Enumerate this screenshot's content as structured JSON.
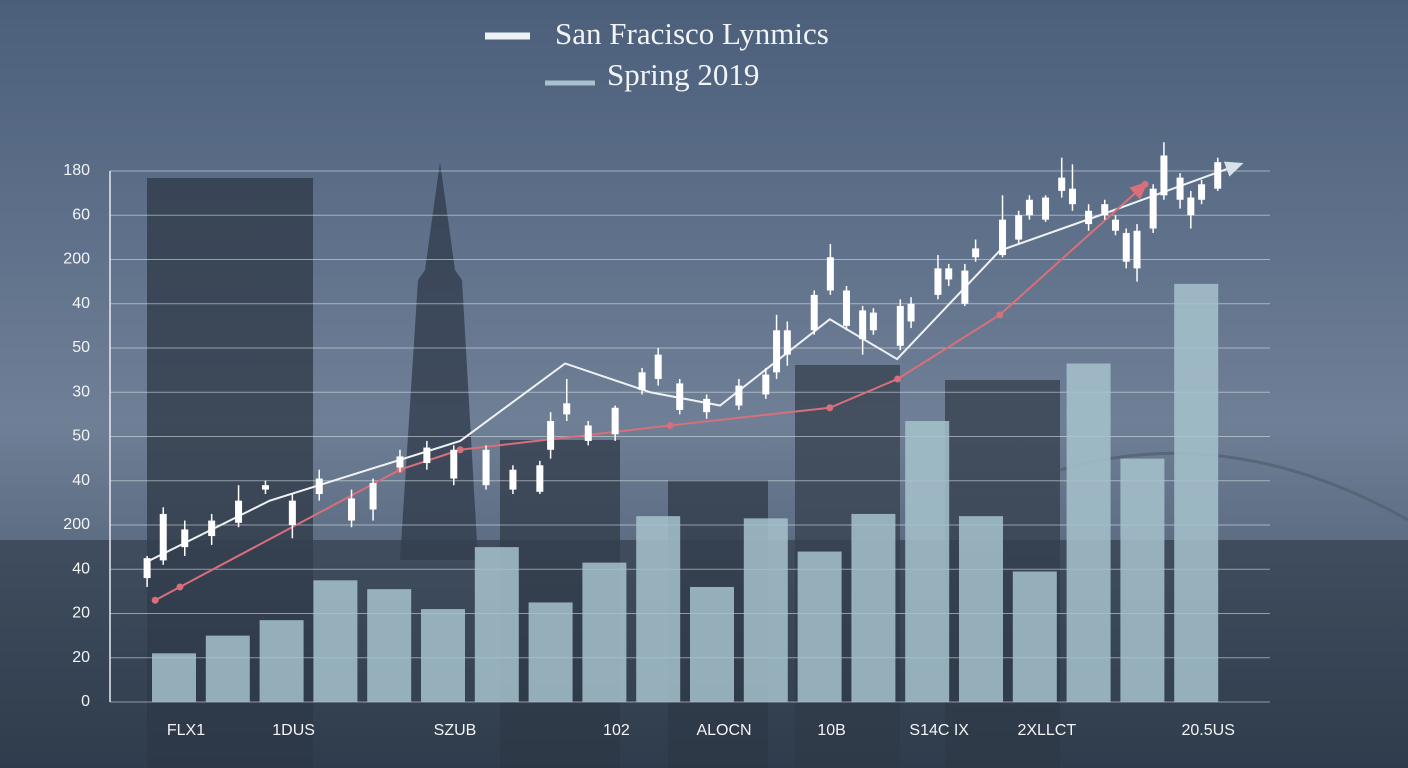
{
  "chart_data": {
    "type": "bar",
    "categories": [
      "FLX1",
      null,
      "1DUS",
      null,
      null,
      "SZUB",
      null,
      null,
      "102",
      null,
      "ALOCN",
      null,
      "10B",
      null,
      "S14C IX",
      null,
      "2XLLCT",
      null,
      null,
      "20.5US"
    ],
    "ylim": [
      0,
      240
    ],
    "yticks": [
      0,
      20,
      {
        "value": 40,
        "label": "20"
      },
      {
        "value": 60,
        "label": "40"
      },
      {
        "value": 80,
        "label": "200"
      },
      {
        "value": 100,
        "label": "40"
      },
      {
        "value": 120,
        "label": "50"
      },
      {
        "value": 140,
        "label": "30"
      },
      {
        "value": 160,
        "label": "50"
      },
      {
        "value": 180,
        "label": "40"
      },
      200,
      {
        "value": 220,
        "label": "60"
      },
      {
        "value": 240,
        "label": "180"
      }
    ],
    "grid": true,
    "series": [
      {
        "name": "Spring 2019",
        "type": "bar",
        "color": "#a6c3cd",
        "values": [
          22,
          30,
          37,
          55,
          51,
          42,
          70,
          45,
          63,
          84,
          52,
          83,
          68,
          85,
          127,
          84,
          59,
          153,
          110,
          189
        ]
      },
      {
        "name": "San Fracisco Lynmics",
        "type": "line",
        "color": "#eef2f4",
        "x": [
          -0.45,
          1.78,
          5.32,
          7.27,
          8.85,
          10.15,
          12.19,
          13.44,
          15.35,
          17.21,
          19.81
        ],
        "values": [
          64,
          91,
          118,
          153,
          140,
          134,
          173,
          155,
          204,
          220,
          243
        ]
      },
      {
        "type": "line",
        "color": "#d86f7a",
        "x": [
          -0.35,
          0.11,
          4.2,
          5.32,
          9.22,
          12.19,
          13.45,
          15.35,
          18.05
        ],
        "values": [
          46,
          52,
          105,
          114,
          125,
          133,
          146,
          175,
          234
        ]
      },
      {
        "type": "candlestick",
        "color": "#ffffff",
        "x": [
          -0.5,
          -0.2,
          0.2,
          0.7,
          1.2,
          1.7,
          2.2,
          2.7,
          3.3,
          3.7,
          4.2,
          4.7,
          5.2,
          5.8,
          6.3,
          6.8,
          7.0,
          7.3,
          7.7,
          8.2,
          8.7,
          9.0,
          9.4,
          9.9,
          10.5,
          11.0,
          11.2,
          11.4,
          11.9,
          12.2,
          12.5,
          12.8,
          13.0,
          13.5,
          13.7,
          14.2,
          14.4,
          14.7,
          14.9,
          15.4,
          15.7,
          15.9,
          16.2,
          16.5,
          16.7,
          17.0,
          17.3,
          17.5,
          17.7,
          17.9,
          18.2,
          18.4,
          18.7,
          18.9,
          19.1,
          19.4
        ],
        "open": [
          56,
          64,
          70,
          75,
          81,
          96,
          80,
          94,
          82,
          87,
          106,
          108,
          101,
          98,
          96,
          95,
          114,
          130,
          118,
          121,
          141,
          146,
          132,
          131,
          134,
          139,
          149,
          157,
          168,
          186,
          170,
          164,
          168,
          161,
          172,
          184,
          191,
          180,
          201,
          202,
          209,
          220,
          218,
          231,
          225,
          216,
          220,
          213,
          199,
          196,
          214,
          229,
          227,
          220,
          227,
          232
        ],
        "close": [
          65,
          85,
          78,
          82,
          91,
          98,
          91,
          101,
          92,
          99,
          111,
          115,
          114,
          114,
          105,
          107,
          127,
          135,
          125,
          133,
          149,
          157,
          144,
          137,
          143,
          148,
          168,
          168,
          184,
          201,
          186,
          177,
          176,
          179,
          180,
          196,
          196,
          195,
          205,
          218,
          220,
          227,
          228,
          237,
          232,
          222,
          225,
          218,
          212,
          213,
          232,
          247,
          237,
          228,
          234,
          244
        ],
        "high": [
          66,
          88,
          82,
          85,
          98,
          100,
          94,
          105,
          96,
          101,
          114,
          118,
          116,
          116,
          107,
          109,
          131,
          146,
          127,
          134,
          151,
          160,
          146,
          139,
          146,
          151,
          175,
          172,
          186,
          207,
          188,
          179,
          178,
          182,
          183,
          202,
          198,
          198,
          209,
          229,
          222,
          229,
          229,
          246,
          243,
          225,
          227,
          220,
          214,
          216,
          234,
          253,
          239,
          231,
          236,
          246
        ],
        "low": [
          52,
          62,
          66,
          71,
          79,
          94,
          74,
          91,
          79,
          82,
          104,
          105,
          98,
          96,
          94,
          94,
          110,
          127,
          116,
          118,
          139,
          143,
          130,
          128,
          132,
          137,
          146,
          152,
          166,
          184,
          168,
          157,
          166,
          159,
          169,
          182,
          188,
          179,
          199,
          201,
          207,
          218,
          217,
          228,
          222,
          213,
          218,
          211,
          196,
          190,
          212,
          227,
          223,
          214,
          225,
          231
        ]
      }
    ]
  }
}
